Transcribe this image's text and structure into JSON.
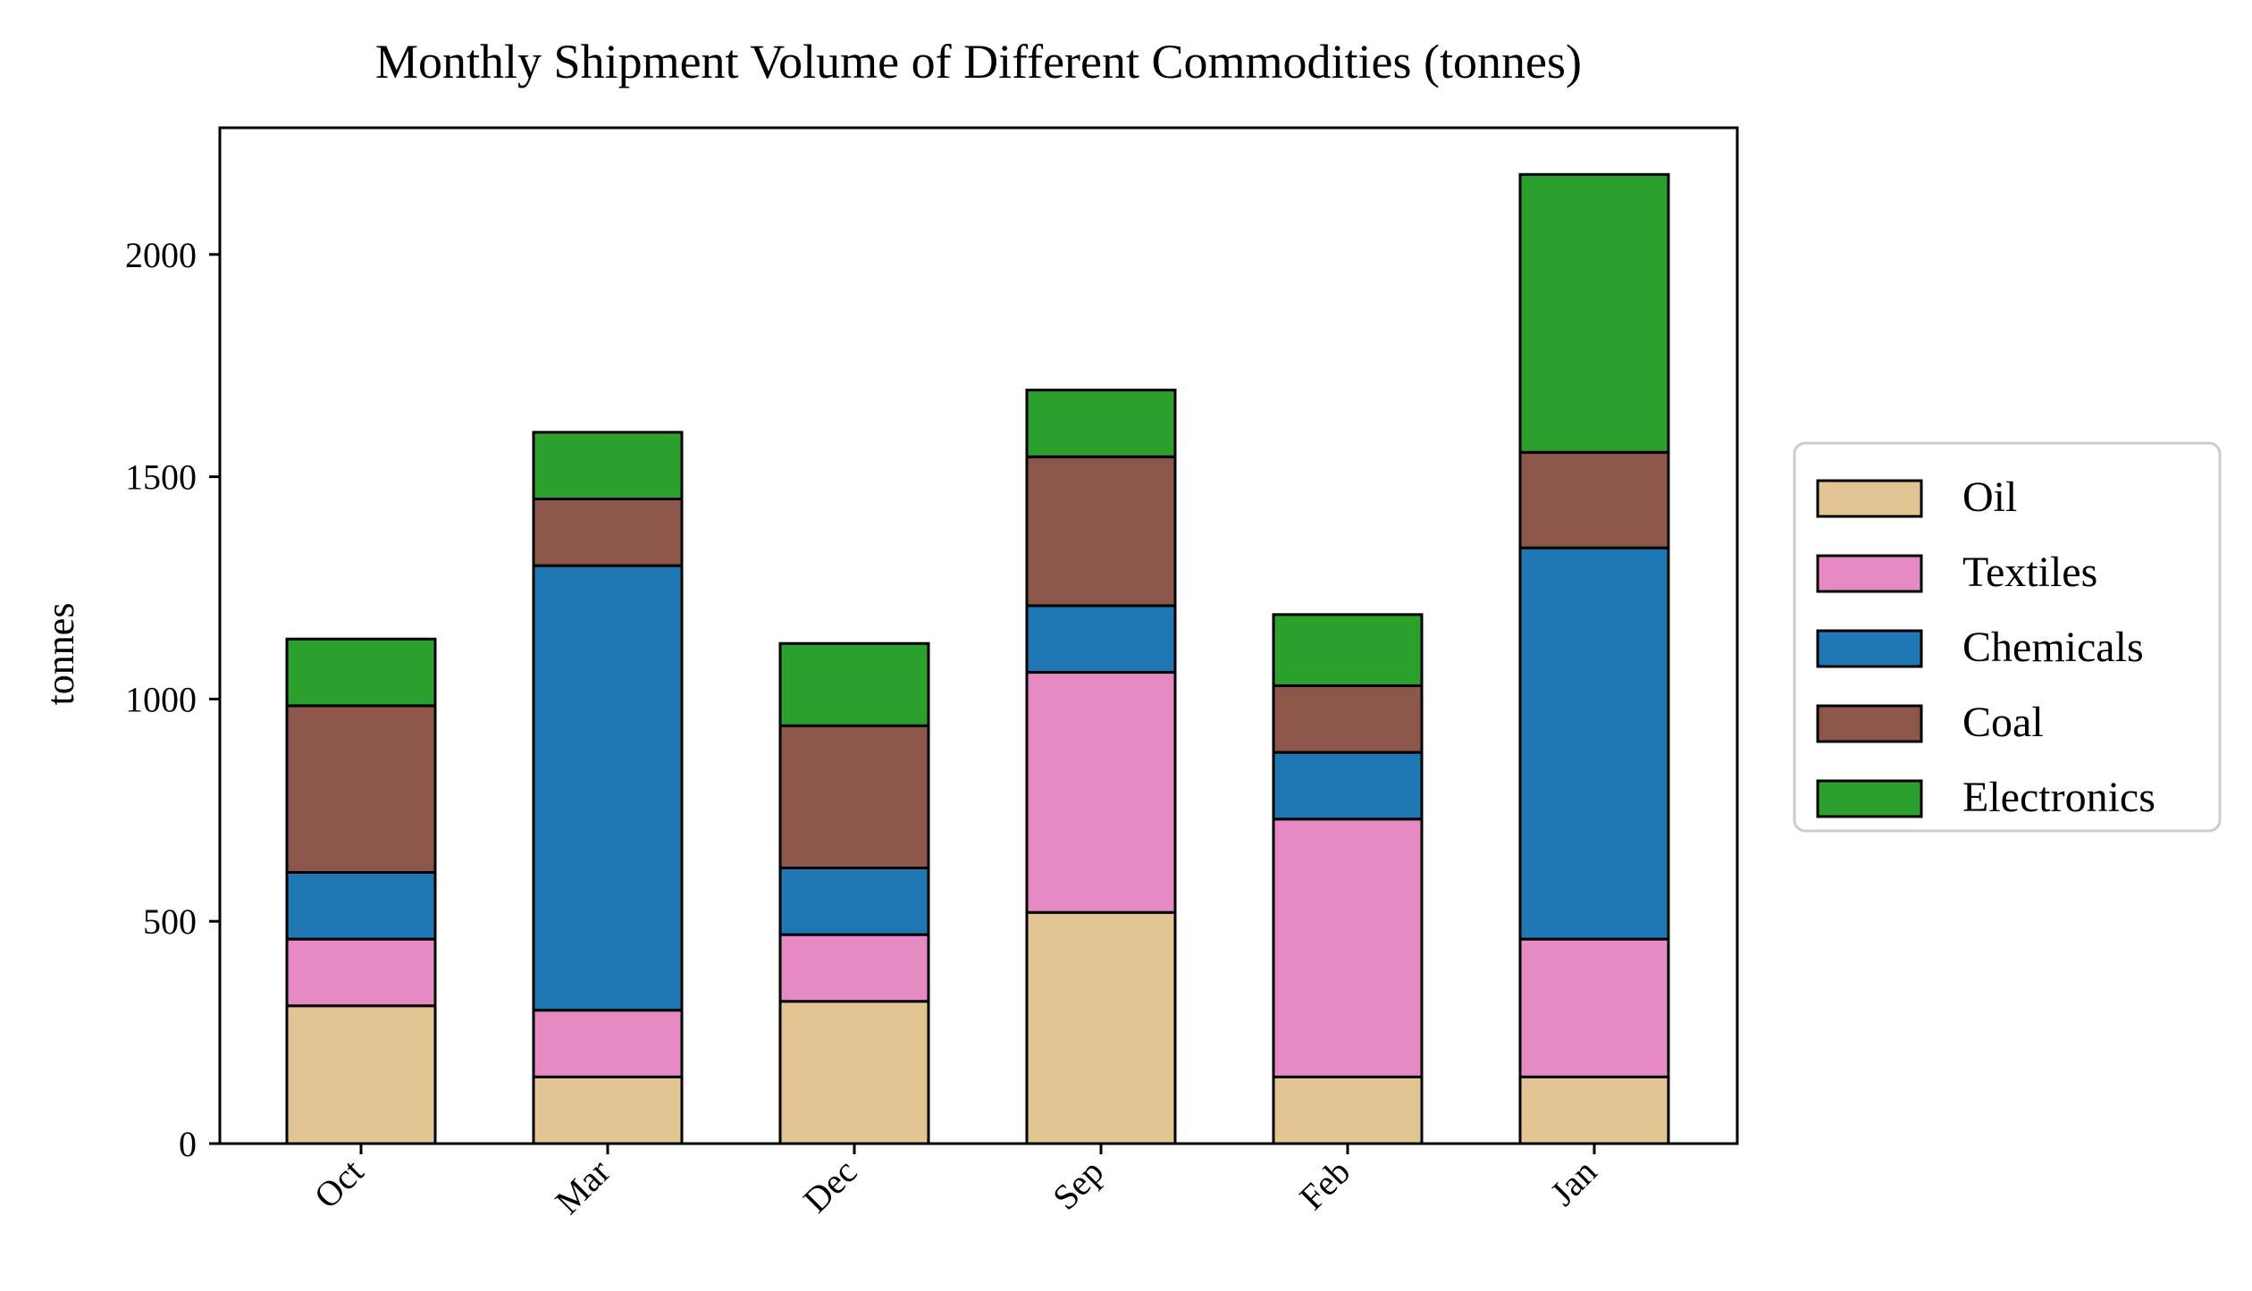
{
  "chart_data": {
    "type": "bar",
    "stacked": true,
    "title": "Monthly Shipment Volume of Different Commodities (tonnes)",
    "xlabel": "",
    "ylabel": "tonnes",
    "categories": [
      "Oct",
      "Mar",
      "Dec",
      "Sep",
      "Feb",
      "Jan"
    ],
    "ylim": [
      0,
      2285
    ],
    "yticks": [
      "0",
      "500",
      "1000",
      "1500",
      "2000"
    ],
    "grid": false,
    "legend_position": "center-right, outside plot",
    "series": [
      {
        "name": "Oil",
        "color": "#e3c594",
        "values": [
          310,
          150,
          320,
          520,
          150,
          150
        ]
      },
      {
        "name": "Textiles",
        "color": "#e78ac3",
        "values": [
          150,
          150,
          150,
          540,
          580,
          310
        ]
      },
      {
        "name": "Chemicals",
        "color": "#1f77b4",
        "values": [
          150,
          1000,
          150,
          150,
          150,
          880
        ]
      },
      {
        "name": "Coal",
        "color": "#8c564b",
        "values": [
          375,
          150,
          320,
          335,
          150,
          215
        ]
      },
      {
        "name": "Electronics",
        "color": "#2ca02c",
        "values": [
          150,
          150,
          185,
          150,
          160,
          625
        ]
      }
    ]
  }
}
